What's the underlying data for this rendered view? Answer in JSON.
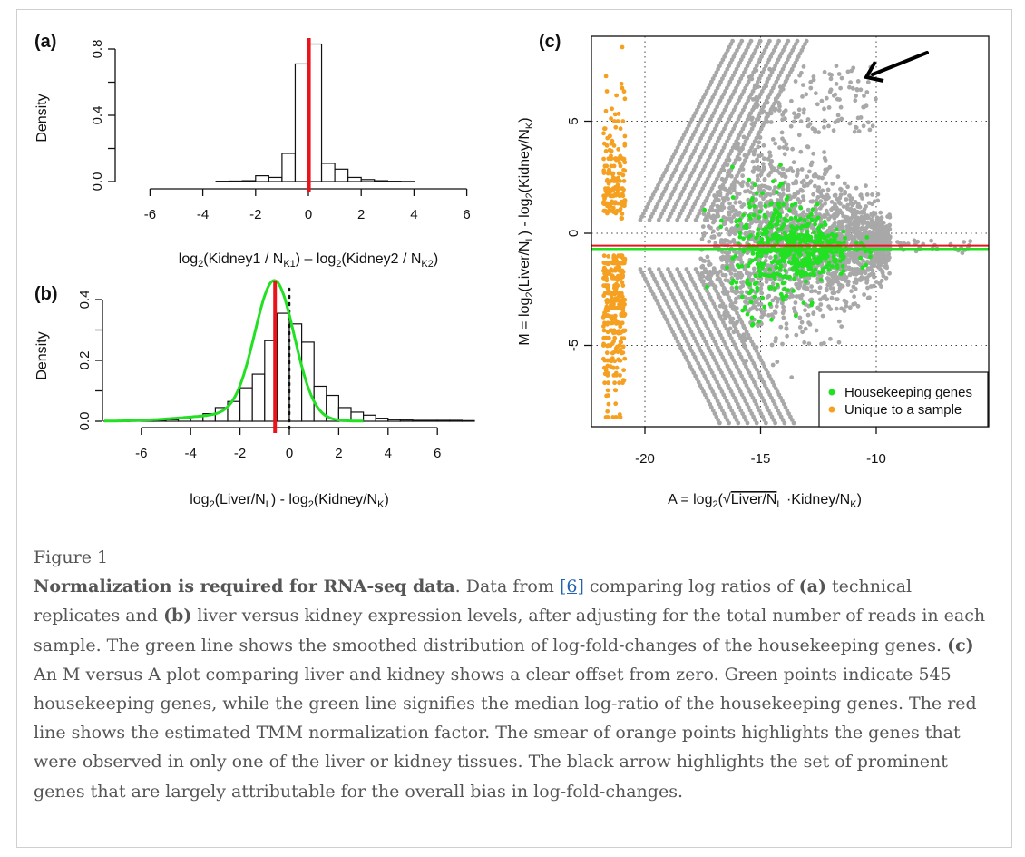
{
  "figure": {
    "label": "Figure 1",
    "caption": {
      "title": "Normalization is required for RNA-seq data",
      "s1": ". Data from ",
      "ref": "[6]",
      "s2": " comparing log ratios of ",
      "a": "(a)",
      "s3": " technical replicates and ",
      "b": "(b)",
      "s4": " liver versus kidney expression levels, after adjusting for the total number of reads in each sample. The green line shows the smoothed distribution of log-fold-changes of the housekeeping genes. ",
      "c": "(c)",
      "s5": " An M versus A plot comparing liver and kidney shows a clear offset from zero. Green points indicate 545 housekeeping genes, while the green line signifies the median log-ratio of the housekeeping genes. The red line shows the estimated TMM normalization factor. The smear of orange points highlights the genes that were observed in only one of the liver or kidney tissues. The black arrow highlights the set of prominent genes that are largely attributable for the overall bias in log-fold-changes."
    }
  },
  "colors": {
    "red": "#e8141a",
    "green": "#22e022",
    "gray": "#a8a8a8",
    "orange": "#f5a020",
    "caption_text": "#555555",
    "link": "#2563b0"
  },
  "chart_data": [
    {
      "panel": "(a)",
      "type": "bar",
      "ylabel": "Density",
      "xlabel_parts": [
        "log",
        "2",
        "(Kidney1 / N",
        "K1",
        ") – log",
        "2",
        "(Kidney2 / N",
        "K2",
        ")"
      ],
      "xlim": [
        -6,
        6
      ],
      "ylim": [
        0,
        0.8
      ],
      "xticks": [
        "-6",
        "-4",
        "-2",
        "0",
        "2",
        "4",
        "6"
      ],
      "yticks": [
        "0.0",
        "0.4",
        "0.8"
      ],
      "bin_width": 0.5,
      "bin_starts": [
        -3.5,
        -3,
        -2.5,
        -2,
        -1.5,
        -1,
        -0.5,
        0,
        0.5,
        1,
        1.5,
        2,
        2.5,
        3,
        3.5
      ],
      "values": [
        0.002,
        0.003,
        0.005,
        0.035,
        0.025,
        0.17,
        0.71,
        0.83,
        0.11,
        0.075,
        0.025,
        0.012,
        0.005,
        0.002,
        0.001
      ],
      "red_line_x": 0.02
    },
    {
      "panel": "(b)",
      "type": "bar",
      "ylabel": "Density",
      "xlabel_parts": [
        "log",
        "2",
        "(Liver/N",
        "L",
        ") - log",
        "2",
        "(Kidney/N",
        "K",
        ")"
      ],
      "xlim": [
        -7.5,
        7.5
      ],
      "ylim": [
        0,
        0.4
      ],
      "xticks": [
        "-6",
        "-4",
        "-2",
        "0",
        "2",
        "4",
        "6"
      ],
      "yticks": [
        "0.0",
        "0.2",
        "0.4"
      ],
      "bin_width": 0.5,
      "bin_starts": [
        -7.5,
        -7,
        -6.5,
        -6,
        -5.5,
        -5,
        -4.5,
        -4,
        -3.5,
        -3,
        -2.5,
        -2,
        -1.5,
        -1,
        -0.5,
        0,
        0.5,
        1,
        1.5,
        2,
        2.5,
        3,
        3.5,
        4,
        4.5,
        5,
        5.5,
        6,
        6.5,
        7
      ],
      "values": [
        0.001,
        0.001,
        0.002,
        0.002,
        0.003,
        0.005,
        0.01,
        0.015,
        0.025,
        0.045,
        0.065,
        0.11,
        0.155,
        0.265,
        0.355,
        0.32,
        0.26,
        0.115,
        0.085,
        0.045,
        0.03,
        0.02,
        0.01,
        0.005,
        0.004,
        0.003,
        0.003,
        0.003,
        0.003,
        0.002
      ],
      "red_line_x": -0.58,
      "dotted_line_x": 0,
      "green_density": {
        "peak_x": -0.6,
        "peak_density": 0.46
      }
    },
    {
      "panel": "(c)",
      "type": "scatter",
      "ylabel_parts": [
        "M = log",
        "2",
        "(Liver/N",
        "L",
        ") - log",
        "2",
        "(Kidney/N",
        "K",
        ")"
      ],
      "xlabel_parts": [
        "A = log",
        "2",
        "(",
        "Liver/N",
        "L",
        " ·Kidney/N",
        "K",
        ")"
      ],
      "xlim": [
        -22.3,
        -5.1
      ],
      "ylim": [
        -8.6,
        8.8
      ],
      "xticks": [
        "-20",
        "-15",
        "-10"
      ],
      "yticks": [
        "-5",
        "0",
        "5"
      ],
      "grid": "dotted",
      "legend": {
        "position": "bottom-right",
        "entries": [
          "Housekeeping genes",
          "Unique to a sample"
        ]
      },
      "housekeeping_count": 545,
      "red_line_M": -0.55,
      "green_line_M": -0.7,
      "arrow": "points to high-M genes near A = -11, M = 7"
    }
  ]
}
